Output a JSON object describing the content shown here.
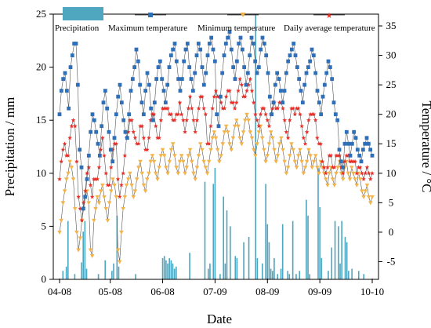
{
  "chart_data": {
    "type": "line",
    "x_tick_labels": [
      "04-08",
      "05-08",
      "06-08",
      "07-09",
      "08-09",
      "09-09",
      "10-10"
    ],
    "x_days_span": 185,
    "x_tick_days": [
      0,
      30,
      61,
      92,
      123,
      154,
      185
    ],
    "xlabel": "Date",
    "ylabel_left": "Precipitation / mm",
    "ylabel_right": "Temperature / °C",
    "ylim_left": [
      0,
      25
    ],
    "yticks_left": [
      0,
      5,
      10,
      15,
      20,
      25
    ],
    "ylim_right": [
      -8,
      37
    ],
    "yticks_right": [
      -5,
      0,
      5,
      10,
      15,
      20,
      25,
      30,
      35
    ],
    "legend": {
      "position": "top",
      "entries": [
        "Precipitation",
        "Maximum temperature",
        "Minimum temperature",
        "Daily average temperature"
      ]
    },
    "colors": {
      "precipitation": "#4fa6bf",
      "max_temp": "#2f6fb8",
      "min_temp": "#f3b44a",
      "avg_temp": "#e8302a",
      "line": "#555555"
    },
    "series": [
      {
        "name": "Maximum temperature",
        "axis": "right",
        "values": [
          20,
          24,
          26,
          27,
          24,
          21,
          28,
          30,
          32,
          32,
          25,
          14,
          11,
          4,
          6,
          9,
          13,
          17,
          20,
          19,
          17,
          15,
          13,
          18,
          22,
          24,
          21,
          17,
          14,
          12,
          16,
          20,
          23,
          25,
          22,
          19,
          17,
          16,
          20,
          24,
          26,
          28,
          31,
          29,
          25,
          22,
          20,
          24,
          27,
          25,
          21,
          19,
          22,
          26,
          28,
          29,
          26,
          24,
          22,
          25,
          28,
          30,
          31,
          32,
          29,
          26,
          24,
          26,
          29,
          31,
          32,
          28,
          26,
          24,
          27,
          30,
          32,
          31,
          28,
          25,
          27,
          30,
          32,
          33,
          31,
          29,
          20,
          18,
          23,
          27,
          30,
          32,
          33,
          34,
          31,
          28,
          26,
          29,
          32,
          33,
          31,
          28,
          25,
          27,
          30,
          33,
          32,
          29,
          27,
          28,
          31,
          33,
          32,
          30,
          27,
          23,
          20,
          22,
          25,
          27,
          26,
          24,
          22,
          24,
          27,
          29,
          30,
          31,
          32,
          30,
          28,
          26,
          24,
          22,
          25,
          27,
          28,
          29,
          31,
          30,
          27,
          24,
          22,
          20,
          23,
          25,
          27,
          29,
          28,
          26,
          22,
          20,
          19,
          14,
          12,
          11,
          15,
          17,
          15,
          13,
          15,
          17,
          16,
          14,
          13,
          12,
          14,
          15,
          16,
          15,
          14,
          13
        ]
      },
      {
        "name": "Minimum temperature",
        "axis": "right",
        "values": [
          0,
          2,
          5,
          7,
          9,
          10,
          12,
          11,
          9,
          4,
          0,
          -3,
          -1,
          2,
          4,
          6,
          7,
          5,
          -3,
          -4,
          2,
          4,
          6,
          5,
          7,
          8,
          6,
          4,
          2,
          5,
          7,
          9,
          8,
          6,
          -3,
          -5,
          0,
          4,
          6,
          8,
          9,
          10,
          8,
          6,
          7,
          9,
          11,
          12,
          10,
          8,
          7,
          9,
          10,
          12,
          13,
          12,
          10,
          9,
          11,
          13,
          14,
          13,
          11,
          10,
          12,
          14,
          15,
          13,
          11,
          10,
          12,
          13,
          12,
          10,
          11,
          13,
          14,
          12,
          10,
          9,
          11,
          13,
          15,
          14,
          12,
          11,
          10,
          12,
          14,
          16,
          17,
          16,
          14,
          12,
          13,
          15,
          17,
          18,
          17,
          15,
          14,
          16,
          18,
          19,
          18,
          16,
          15,
          17,
          19,
          20,
          19,
          17,
          16,
          14,
          13,
          15,
          17,
          18,
          16,
          14,
          12,
          13,
          15,
          17,
          16,
          14,
          12,
          13,
          15,
          16,
          14,
          12,
          10,
          11,
          13,
          15,
          14,
          12,
          11,
          13,
          14,
          12,
          10,
          11,
          12,
          14,
          13,
          11,
          12,
          13,
          11,
          10,
          12,
          11,
          10,
          9,
          8,
          10,
          11,
          9,
          8,
          10,
          11,
          12,
          10,
          9,
          11,
          12,
          10,
          9,
          11,
          10,
          9,
          8,
          10,
          9,
          7,
          6,
          7,
          8,
          6,
          5,
          6
        ]
      },
      {
        "name": "Daily average temperature",
        "axis": "right",
        "values": [
          9,
          12,
          14,
          15,
          13,
          13,
          16,
          18,
          19,
          18,
          12,
          6,
          4,
          2,
          5,
          7,
          10,
          11,
          8,
          6,
          9,
          9,
          9,
          11,
          14,
          16,
          13,
          10,
          8,
          8,
          11,
          14,
          15,
          15,
          9,
          6,
          8,
          10,
          13,
          16,
          17,
          19,
          19,
          17,
          16,
          15,
          15,
          18,
          18,
          16,
          14,
          14,
          16,
          19,
          20,
          20,
          18,
          16,
          16,
          19,
          21,
          21,
          21,
          21,
          20,
          20,
          19,
          19,
          20,
          20,
          22,
          20,
          19,
          17,
          19,
          21,
          23,
          21,
          19,
          17,
          19,
          21,
          23,
          23,
          21,
          20,
          15,
          15,
          18,
          21,
          23,
          24,
          23,
          23,
          22,
          21,
          21,
          23,
          24,
          24,
          22,
          22,
          21,
          22,
          24,
          26,
          25,
          23,
          23,
          24,
          25,
          26,
          24,
          22,
          20,
          19,
          18,
          20,
          21,
          21,
          20,
          19,
          18,
          20,
          21,
          22,
          21,
          21,
          22,
          22,
          21,
          19,
          17,
          16,
          19,
          21,
          21,
          20,
          21,
          21,
          20,
          18,
          16,
          15,
          17,
          19,
          20,
          20,
          20,
          19,
          16,
          15,
          15,
          12,
          11,
          10,
          11,
          13,
          13,
          11,
          11,
          13,
          13,
          13,
          11,
          10,
          12,
          13,
          13,
          12,
          12,
          12,
          12,
          10,
          11,
          11,
          10,
          9,
          10,
          11,
          10,
          9,
          10
        ]
      },
      {
        "name": "Precipitation",
        "axis": "left",
        "type": "bar",
        "bars": [
          [
            2,
            0.8
          ],
          [
            4,
            1.2
          ],
          [
            5,
            5.5
          ],
          [
            9,
            0.5
          ],
          [
            13,
            1.6
          ],
          [
            14,
            4.5
          ],
          [
            15,
            5.5
          ],
          [
            16,
            1.0
          ],
          [
            23,
            0.5
          ],
          [
            27,
            1.8
          ],
          [
            31,
            0.8
          ],
          [
            32,
            1.5
          ],
          [
            34,
            6.0
          ],
          [
            35,
            1.2
          ],
          [
            45,
            0.5
          ],
          [
            61,
            2.0
          ],
          [
            62,
            2.2
          ],
          [
            63,
            1.8
          ],
          [
            64,
            1.5
          ],
          [
            65,
            2.0
          ],
          [
            66,
            1.8
          ],
          [
            67,
            1.5
          ],
          [
            68,
            1.0
          ],
          [
            69,
            1.2
          ],
          [
            77,
            2.5
          ],
          [
            86,
            9.2
          ],
          [
            88,
            1.0
          ],
          [
            89,
            1.5
          ],
          [
            91,
            9.0
          ],
          [
            92,
            10.5
          ],
          [
            95,
            0.5
          ],
          [
            97,
            7.8
          ],
          [
            98,
            1.5
          ],
          [
            99,
            6.5
          ],
          [
            101,
            5.0
          ],
          [
            104,
            2.2
          ],
          [
            105,
            2.0
          ],
          [
            109,
            3.5
          ],
          [
            112,
            4.0
          ],
          [
            116,
            25.0
          ],
          [
            117,
            2.0
          ],
          [
            120,
            1.5
          ],
          [
            122,
            9.0
          ],
          [
            123,
            5.2
          ],
          [
            124,
            3.5
          ],
          [
            125,
            1.0
          ],
          [
            126,
            0.8
          ],
          [
            127,
            2.0
          ],
          [
            129,
            0.5
          ],
          [
            131,
            1.0
          ],
          [
            132,
            5.2
          ],
          [
            135,
            0.8
          ],
          [
            136,
            0.5
          ],
          [
            138,
            5.5
          ],
          [
            140,
            0.5
          ],
          [
            142,
            0.8
          ],
          [
            146,
            7.5
          ],
          [
            147,
            6.0
          ],
          [
            148,
            0.5
          ],
          [
            153,
            10.5
          ],
          [
            154,
            6.8
          ],
          [
            155,
            2.0
          ],
          [
            159,
            0.8
          ],
          [
            161,
            3.0
          ],
          [
            163,
            5.5
          ],
          [
            165,
            5.0
          ],
          [
            166,
            1.5
          ],
          [
            167,
            5.5
          ],
          [
            169,
            4.0
          ],
          [
            170,
            3.5
          ],
          [
            171,
            0.8
          ],
          [
            173,
            1.0
          ],
          [
            177,
            0.8
          ],
          [
            180,
            0.5
          ]
        ]
      }
    ]
  }
}
